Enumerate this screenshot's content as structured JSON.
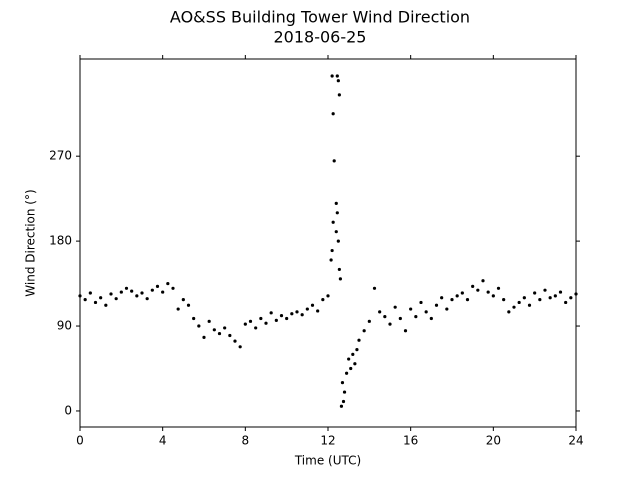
{
  "chart_data": {
    "type": "scatter",
    "title": "AO&SS Building Tower Wind Direction",
    "subtitle": "2018-06-25",
    "x_label": "Time (UTC)",
    "y_label": "Wind Direction (°)",
    "color": "#000000",
    "x": [
      0,
      0.25,
      0.5,
      0.75,
      1,
      1.25,
      1.5,
      1.75,
      2,
      2.25,
      2.5,
      2.75,
      3,
      3.25,
      3.5,
      3.75,
      4,
      4.25,
      4.5,
      4.75,
      5,
      5.25,
      5.5,
      5.75,
      6,
      6.25,
      6.5,
      6.75,
      7,
      7.25,
      7.5,
      7.75,
      8,
      8.25,
      8.5,
      8.75,
      9,
      9.25,
      9.5,
      9.75,
      10,
      10.25,
      10.5,
      10.75,
      11,
      11.25,
      11.5,
      11.75,
      12,
      12.15,
      12.2,
      12.25,
      12.3,
      12.25,
      12.2,
      12.45,
      12.5,
      12.55,
      12.4,
      12.45,
      12.4,
      12.5,
      12.55,
      12.6,
      12.7,
      12.75,
      12.65,
      12.8,
      12.9,
      13.0,
      13.1,
      13.2,
      13.3,
      13.4,
      13.5,
      13.75,
      14,
      14.25,
      14.5,
      14.75,
      15,
      15.25,
      15.5,
      15.75,
      16,
      16.25,
      16.5,
      16.75,
      17,
      17.25,
      17.5,
      17.75,
      18,
      18.25,
      18.5,
      18.75,
      19,
      19.25,
      19.5,
      19.75,
      20,
      20.25,
      20.5,
      20.75,
      21,
      21.25,
      21.5,
      21.75,
      22,
      22.25,
      22.5,
      22.75,
      23,
      23.25,
      23.5,
      23.75,
      24
    ],
    "values": [
      122,
      118,
      125,
      115,
      120,
      112,
      124,
      119,
      126,
      130,
      127,
      122,
      125,
      119,
      128,
      132,
      126,
      135,
      130,
      108,
      118,
      112,
      98,
      90,
      78,
      95,
      86,
      82,
      88,
      80,
      74,
      68,
      92,
      95,
      88,
      98,
      93,
      104,
      96,
      101,
      98,
      103,
      105,
      102,
      108,
      112,
      106,
      118,
      122,
      160,
      170,
      200,
      265,
      315,
      355,
      355,
      350,
      335,
      220,
      210,
      190,
      180,
      150,
      140,
      30,
      10,
      5,
      20,
      40,
      55,
      45,
      60,
      50,
      65,
      75,
      85,
      95,
      130,
      105,
      100,
      92,
      110,
      98,
      85,
      108,
      100,
      115,
      105,
      98,
      112,
      120,
      108,
      118,
      122,
      125,
      118,
      132,
      128,
      138,
      126,
      122,
      130,
      118,
      105,
      110,
      115,
      120,
      112,
      125,
      118,
      128,
      120,
      122,
      126,
      115,
      120,
      124
    ],
    "xlim": [
      0,
      24
    ],
    "ylim": [
      -17,
      373
    ],
    "xticks": [
      0,
      4,
      8,
      12,
      16,
      20,
      24
    ],
    "yticks": [
      0,
      90,
      180,
      270
    ]
  }
}
